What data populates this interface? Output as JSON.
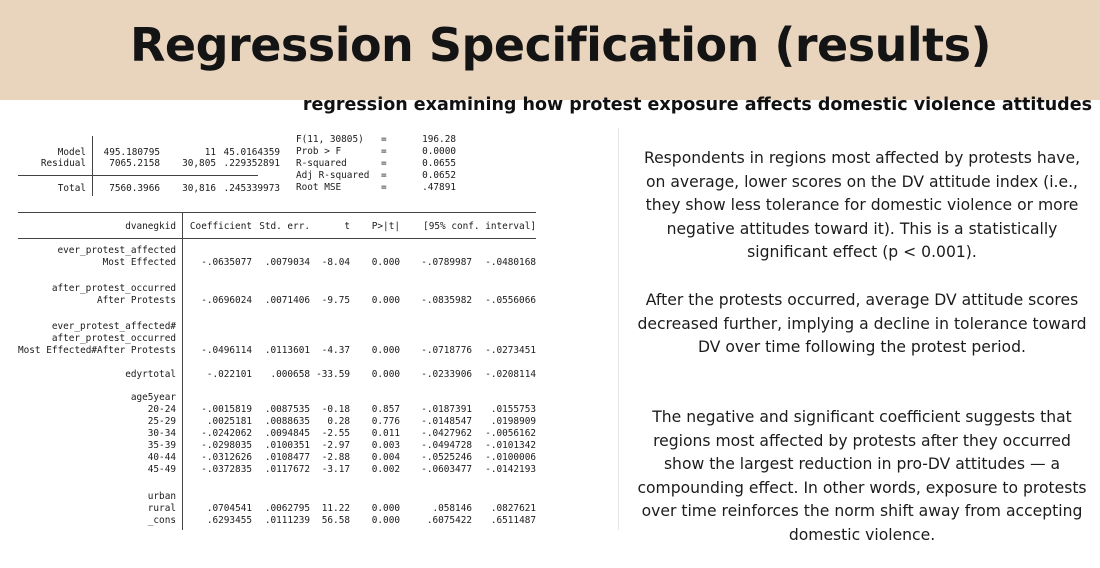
{
  "slide": {
    "title": "Regression Specification (results)",
    "subtitle": "regression examining how protest exposure affects domestic violence attitudes"
  },
  "anova": {
    "rows": [
      {
        "source": "Model",
        "ss": "495.180795",
        "df": "11",
        "ms": "45.0164359"
      },
      {
        "source": "Residual",
        "ss": "7065.2158",
        "df": "30,805",
        "ms": ".229352891"
      },
      {
        "source": "Total",
        "ss": "7560.3966",
        "df": "30,816",
        "ms": ".245339973"
      }
    ],
    "stats": [
      {
        "label": "F(11, 30805)",
        "eq": "=",
        "value": "196.28"
      },
      {
        "label": "Prob > F",
        "eq": "=",
        "value": "0.0000"
      },
      {
        "label": "R-squared",
        "eq": "=",
        "value": "0.0655"
      },
      {
        "label": "Adj R-squared",
        "eq": "=",
        "value": "0.0652"
      },
      {
        "label": "Root MSE",
        "eq": "=",
        "value": ".47891"
      }
    ]
  },
  "coef_table": {
    "dep_var": "dvanegkid",
    "headers": {
      "coef": "Coefficient",
      "se": "Std. err.",
      "t": "t",
      "p": "P>|t|",
      "ci": "[95% conf. interval]"
    },
    "labels": {
      "ever_protest_affected": "ever_protest_affected",
      "after_protest_occurred": "after_protest_occurred",
      "interaction_1": "ever_protest_affected#",
      "interaction_2": "after_protest_occurred",
      "age5year": "age5year",
      "urban": "urban"
    },
    "rows": [
      {
        "label": "Most Effected",
        "coef": "-.0635077",
        "se": ".0079034",
        "t": "-8.04",
        "p": "0.000",
        "ci_lo": "-.0789987",
        "ci_hi": "-.0480168"
      },
      {
        "label": "After Protests",
        "coef": "-.0696024",
        "se": ".0071406",
        "t": "-9.75",
        "p": "0.000",
        "ci_lo": "-.0835982",
        "ci_hi": "-.0556066"
      },
      {
        "label": "Most Effected#After Protests",
        "coef": "-.0496114",
        "se": ".0113601",
        "t": "-4.37",
        "p": "0.000",
        "ci_lo": "-.0718776",
        "ci_hi": "-.0273451"
      },
      {
        "label": "edyrtotal",
        "coef": "-.022101",
        "se": ".000658",
        "t": "-33.59",
        "p": "0.000",
        "ci_lo": "-.0233906",
        "ci_hi": "-.0208114"
      },
      {
        "label": "20-24",
        "coef": "-.0015819",
        "se": ".0087535",
        "t": "-0.18",
        "p": "0.857",
        "ci_lo": "-.0187391",
        "ci_hi": ".0155753"
      },
      {
        "label": "25-29",
        "coef": ".0025181",
        "se": ".0088635",
        "t": "0.28",
        "p": "0.776",
        "ci_lo": "-.0148547",
        "ci_hi": ".0198909"
      },
      {
        "label": "30-34",
        "coef": "-.0242062",
        "se": ".0094845",
        "t": "-2.55",
        "p": "0.011",
        "ci_lo": "-.0427962",
        "ci_hi": "-.0056162"
      },
      {
        "label": "35-39",
        "coef": "-.0298035",
        "se": ".0100351",
        "t": "-2.97",
        "p": "0.003",
        "ci_lo": "-.0494728",
        "ci_hi": "-.0101342"
      },
      {
        "label": "40-44",
        "coef": "-.0312626",
        "se": ".0108477",
        "t": "-2.88",
        "p": "0.004",
        "ci_lo": "-.0525246",
        "ci_hi": "-.0100006"
      },
      {
        "label": "45-49",
        "coef": "-.0372835",
        "se": ".0117672",
        "t": "-3.17",
        "p": "0.002",
        "ci_lo": "-.0603477",
        "ci_hi": "-.0142193"
      },
      {
        "label": "rural",
        "coef": ".0704541",
        "se": ".0062795",
        "t": "11.22",
        "p": "0.000",
        "ci_lo": ".058146",
        "ci_hi": ".0827621"
      },
      {
        "label": "_cons",
        "coef": ".6293455",
        "se": ".0111239",
        "t": "56.58",
        "p": "0.000",
        "ci_lo": ".6075422",
        "ci_hi": ".6511487"
      }
    ]
  },
  "interpretation": [
    "Respondents in regions most affected by protests have, on average, lower scores on the DV attitude index (i.e., they show less tolerance for domestic violence or more negative attitudes toward it). This is a statistically significant effect (p < 0.001).",
    "After the protests occurred, average DV attitude scores decreased further, implying a decline in tolerance toward DV over time following the protest period.",
    "The negative and significant coefficient suggests that regions most affected by protests after they occurred show the largest reduction in pro-DV attitudes — a compounding effect. In other words, exposure to protests over time reinforces the norm shift away from accepting domestic violence."
  ]
}
